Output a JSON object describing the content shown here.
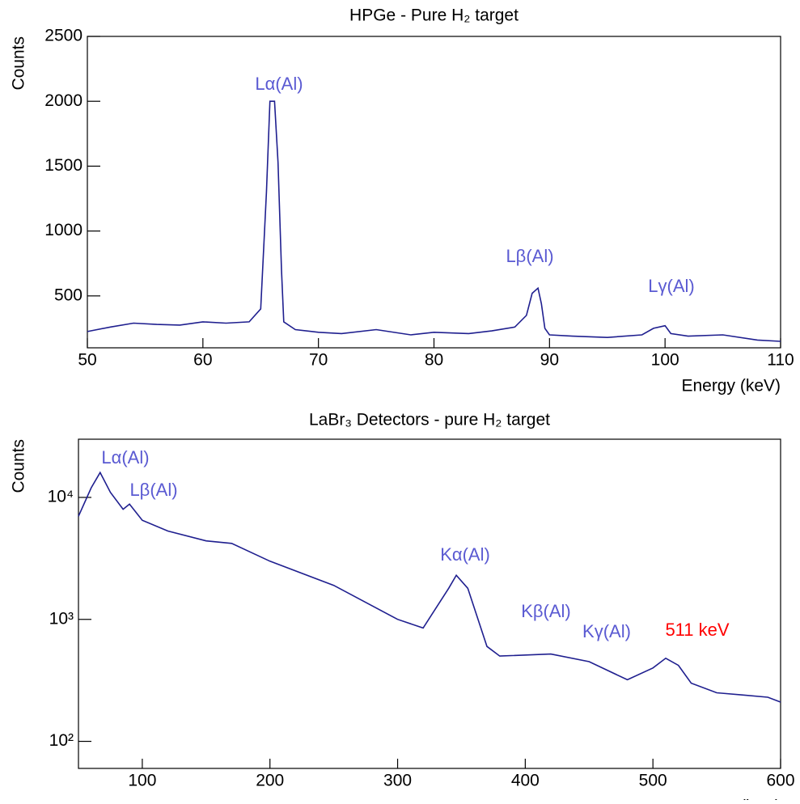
{
  "chart_data": [
    {
      "type": "line",
      "title": "HPGe - Pure H₂ target",
      "xlabel": "Energy (keV)",
      "ylabel": "Counts",
      "x": [
        50,
        52,
        54,
        56,
        58,
        60,
        62,
        64,
        65,
        65.5,
        65.8,
        66.2,
        66.5,
        66.8,
        67,
        68,
        70,
        72,
        75,
        78,
        80,
        83,
        85,
        87,
        88,
        88.5,
        89,
        89.3,
        89.6,
        90,
        92,
        95,
        98,
        99,
        100,
        100.5,
        102,
        105,
        108,
        110
      ],
      "values": [
        225,
        260,
        290,
        280,
        275,
        300,
        290,
        300,
        400,
        1300,
        2000,
        2000,
        1530,
        700,
        300,
        240,
        220,
        210,
        240,
        200,
        220,
        210,
        230,
        260,
        350,
        520,
        560,
        440,
        250,
        200,
        190,
        180,
        200,
        250,
        270,
        210,
        190,
        200,
        160,
        150
      ],
      "color": "#1f1f8f",
      "xlim": [
        50,
        110
      ],
      "xticks": [
        50,
        60,
        70,
        80,
        90,
        100,
        110
      ],
      "ylim": [
        100,
        2500
      ],
      "yticks": [
        500,
        1000,
        1500,
        2000,
        2500
      ],
      "annotations": [
        {
          "text": "Lα(Al)",
          "color": "#5a5ad2"
        },
        {
          "text": "Lβ(Al)",
          "color": "#5a5ad2"
        },
        {
          "text": "Lγ(Al)",
          "color": "#5a5ad2"
        }
      ]
    },
    {
      "type": "line",
      "title": "LaBr₃ Detectors - pure H₂ target",
      "xlabel": "Energy (keV)",
      "ylabel": "Counts",
      "yscale": "log",
      "x": [
        50,
        60,
        67,
        75,
        85,
        90,
        100,
        120,
        150,
        170,
        200,
        250,
        300,
        320,
        340,
        346,
        355,
        370,
        380,
        420,
        450,
        480,
        500,
        510,
        520,
        530,
        550,
        570,
        590,
        600
      ],
      "values": [
        7000,
        12000,
        16000,
        11000,
        8000,
        8800,
        6500,
        5300,
        4400,
        4200,
        3000,
        1900,
        1000,
        850,
        1800,
        2300,
        1800,
        600,
        500,
        520,
        450,
        320,
        400,
        480,
        420,
        300,
        250,
        240,
        230,
        210
      ],
      "color": "#1f1f8f",
      "xlim": [
        50,
        600
      ],
      "xticks": [
        100,
        200,
        300,
        400,
        500,
        600
      ],
      "ylim": [
        60,
        30000
      ],
      "yticks": [
        {
          "value": 100,
          "label": "10²"
        },
        {
          "value": 1000,
          "label": "10³"
        },
        {
          "value": 10000,
          "label": "10⁴"
        }
      ],
      "annotations": [
        {
          "text": "Lα(Al)",
          "color": "#5a5ad2"
        },
        {
          "text": "Lβ(Al)",
          "color": "#5a5ad2"
        },
        {
          "text": "Kα(Al)",
          "color": "#5a5ad2"
        },
        {
          "text": "Kβ(Al)",
          "color": "#5a5ad2"
        },
        {
          "text": "Kγ(Al)",
          "color": "#5a5ad2"
        },
        {
          "text": "511 keV",
          "color": "#ff0000"
        }
      ]
    }
  ]
}
